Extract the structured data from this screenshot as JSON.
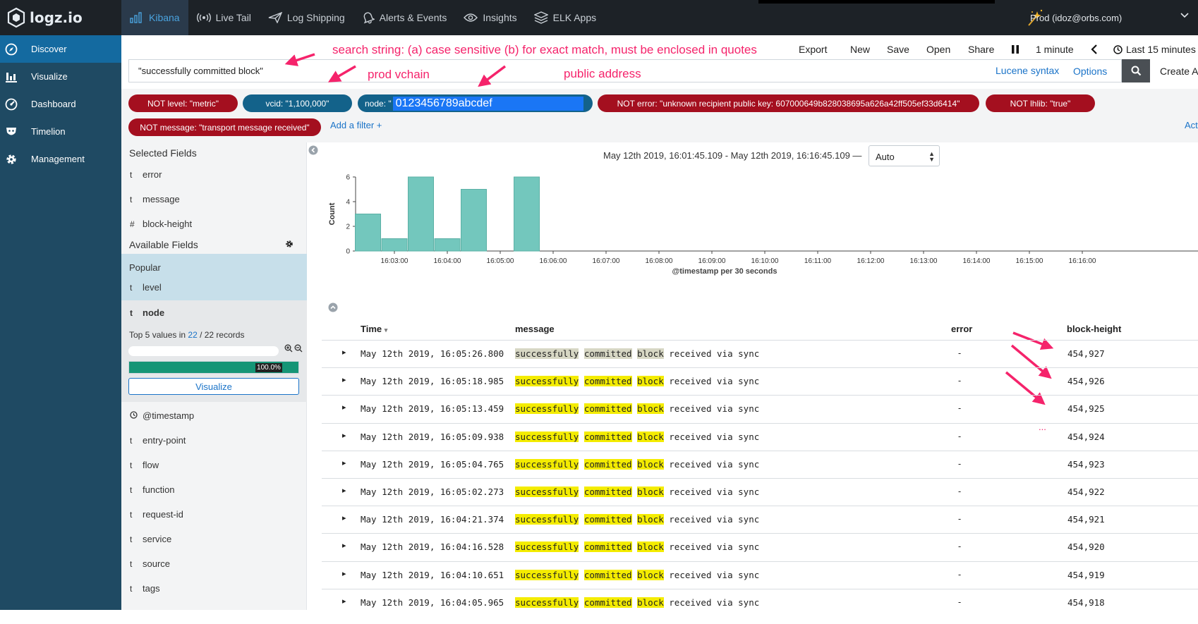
{
  "brand": {
    "name": "logz.io"
  },
  "nav": [
    {
      "label": "Kibana",
      "icon": "bar-chart-icon",
      "active": true
    },
    {
      "label": "Live Tail",
      "icon": "radio-waves-icon",
      "active": false
    },
    {
      "label": "Log Shipping",
      "icon": "paper-plane-icon",
      "active": false
    },
    {
      "label": "Alerts & Events",
      "icon": "bell-icon",
      "active": false
    },
    {
      "label": "Insights",
      "icon": "eye-icon",
      "active": false
    },
    {
      "label": "ELK Apps",
      "icon": "layers-icon",
      "active": false
    }
  ],
  "user": {
    "label": "Prod (idoz@orbs.com)"
  },
  "sidebar": [
    {
      "label": "Discover",
      "icon": "compass-icon",
      "active": true
    },
    {
      "label": "Visualize",
      "icon": "bar-chart-icon",
      "active": false
    },
    {
      "label": "Dashboard",
      "icon": "dashboard-icon",
      "active": false
    },
    {
      "label": "Timelion",
      "icon": "timelion-icon",
      "active": false
    },
    {
      "label": "Management",
      "icon": "gear-icon",
      "active": false
    }
  ],
  "toolbar": {
    "export": "Export",
    "new": "New",
    "save": "Save",
    "open": "Open",
    "share": "Share",
    "refresh_interval": "1 minute",
    "time_range": "Last 15 minutes"
  },
  "search": {
    "value": "\"successfully committed block\"",
    "syntax": "Lucene syntax",
    "options": "Options",
    "create": "Create A"
  },
  "annotations": {
    "search_note": "search string: (a) case sensitive (b) for exact match, must be enclosed in quotes",
    "prod_vchain": "prod vchain",
    "public_address": "public address",
    "dots": "..."
  },
  "filters": [
    {
      "label": "NOT level: \"metric\"",
      "negate": true
    },
    {
      "label": "vcid: \"1,100,000\"",
      "negate": false
    },
    {
      "label": "node: \"",
      "highlight": "0123456789abcdef",
      "negate": false
    },
    {
      "label": "NOT error: \"unknown recipient public key: 607000649b828038695a626a42ff505ef33d6414\"",
      "negate": true
    },
    {
      "label": "NOT lhlib: \"true\"",
      "negate": true
    },
    {
      "label": "NOT message: \"transport message received\"",
      "negate": true
    }
  ],
  "add_filter": "Add a filter +",
  "actions_link": "Act",
  "fields": {
    "selected_heading": "Selected Fields",
    "selected": [
      {
        "type": "t",
        "name": "error"
      },
      {
        "type": "t",
        "name": "message"
      },
      {
        "type": "#",
        "name": "block-height"
      }
    ],
    "available_heading": "Available Fields",
    "popular_heading": "Popular",
    "popular": [
      {
        "type": "t",
        "name": "level"
      }
    ],
    "detail_field": {
      "type": "t",
      "name": "node"
    },
    "top5_prefix": "Top 5 values in ",
    "top5_count": "22",
    "top5_suffix": " / 22 records",
    "top_value_percent": "100.0%",
    "top_value_fraction": 1.0,
    "visualize_button": "Visualize",
    "available": [
      {
        "type": "clock",
        "name": "@timestamp"
      },
      {
        "type": "t",
        "name": "entry-point"
      },
      {
        "type": "t",
        "name": "flow"
      },
      {
        "type": "t",
        "name": "function"
      },
      {
        "type": "t",
        "name": "request-id"
      },
      {
        "type": "t",
        "name": "service"
      },
      {
        "type": "t",
        "name": "source"
      },
      {
        "type": "t",
        "name": "tags"
      }
    ]
  },
  "histogram": {
    "range_label": "May 12th 2019, 16:01:45.109 - May 12th 2019, 16:16:45.109 —",
    "interval": "Auto"
  },
  "chart_data": {
    "type": "bar",
    "x": [
      "16:02:30",
      "16:03:00",
      "16:03:30",
      "16:04:00",
      "16:04:30",
      "16:05:00",
      "16:05:30"
    ],
    "values": [
      3,
      1,
      6,
      1,
      5,
      0,
      6
    ],
    "xlabel": "@timestamp per 30 seconds",
    "ylabel": "Count",
    "ylim": [
      0,
      6
    ],
    "yticks": [
      0,
      2,
      4,
      6
    ],
    "xticks": [
      "16:03:00",
      "16:04:00",
      "16:05:00",
      "16:06:00",
      "16:07:00",
      "16:08:00",
      "16:09:00",
      "16:10:00",
      "16:11:00",
      "16:12:00",
      "16:13:00",
      "16:14:00",
      "16:15:00",
      "16:16:00"
    ],
    "color": "#73c7bd",
    "grid": false
  },
  "table": {
    "columns": [
      "Time",
      "message",
      "error",
      "block-height"
    ],
    "rows": [
      {
        "time": "May 12th 2019, 16:05:26.800",
        "error": "-",
        "block_height": "454,927"
      },
      {
        "time": "May 12th 2019, 16:05:18.985",
        "error": "-",
        "block_height": "454,926"
      },
      {
        "time": "May 12th 2019, 16:05:13.459",
        "error": "-",
        "block_height": "454,925"
      },
      {
        "time": "May 12th 2019, 16:05:09.938",
        "error": "-",
        "block_height": "454,924"
      },
      {
        "time": "May 12th 2019, 16:05:04.765",
        "error": "-",
        "block_height": "454,923"
      },
      {
        "time": "May 12th 2019, 16:05:02.273",
        "error": "-",
        "block_height": "454,922"
      },
      {
        "time": "May 12th 2019, 16:04:21.374",
        "error": "-",
        "block_height": "454,921"
      },
      {
        "time": "May 12th 2019, 16:04:16.528",
        "error": "-",
        "block_height": "454,920"
      },
      {
        "time": "May 12th 2019, 16:04:10.651",
        "error": "-",
        "block_height": "454,919"
      },
      {
        "time": "May 12th 2019, 16:04:05.965",
        "error": "-",
        "block_height": "454,918"
      }
    ],
    "message_words": [
      "successfully",
      "committed",
      "block",
      "received",
      "via",
      "sync"
    ],
    "highlight_count": 3
  }
}
